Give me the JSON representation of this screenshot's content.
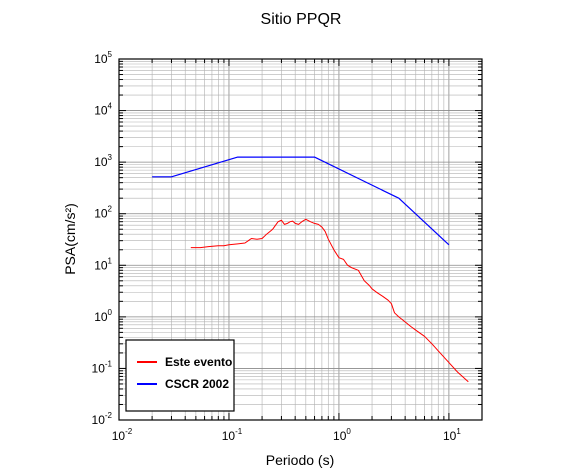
{
  "chart_data": {
    "type": "line",
    "title": "Sitio PPQR",
    "xlabel": "Periodo (s)",
    "ylabel": "PSA(cm/s²)",
    "x_scale": "log",
    "y_scale": "log",
    "xlim": [
      0.01,
      20
    ],
    "ylim": [
      0.01,
      100000
    ],
    "x_ticks": [
      {
        "base": "10",
        "exp": "-2"
      },
      {
        "base": "10",
        "exp": "-1"
      },
      {
        "base": "10",
        "exp": "0"
      },
      {
        "base": "10",
        "exp": "1"
      }
    ],
    "y_ticks": [
      {
        "base": "10",
        "exp": "-2"
      },
      {
        "base": "10",
        "exp": "-1"
      },
      {
        "base": "10",
        "exp": "0"
      },
      {
        "base": "10",
        "exp": "1"
      },
      {
        "base": "10",
        "exp": "2"
      },
      {
        "base": "10",
        "exp": "3"
      },
      {
        "base": "10",
        "exp": "4"
      },
      {
        "base": "10",
        "exp": "5"
      }
    ],
    "grid": true,
    "legend_position": "bottom-left",
    "series": [
      {
        "name": "Este evento",
        "color": "#ff0000",
        "x": [
          0.045,
          0.055,
          0.065,
          0.08,
          0.09,
          0.1,
          0.12,
          0.14,
          0.15,
          0.16,
          0.18,
          0.2,
          0.22,
          0.25,
          0.28,
          0.3,
          0.32,
          0.34,
          0.36,
          0.38,
          0.4,
          0.43,
          0.46,
          0.5,
          0.55,
          0.6,
          0.65,
          0.7,
          0.75,
          0.8,
          0.9,
          1.0,
          1.1,
          1.2,
          1.3,
          1.5,
          1.7,
          1.9,
          2.0,
          2.2,
          2.5,
          2.8,
          3.0,
          3.2,
          3.5,
          4.0,
          4.5,
          5.0,
          6.0,
          7.0,
          8.0,
          10.0,
          12.0,
          15.0
        ],
        "y": [
          22,
          22,
          23,
          24,
          24,
          25,
          26,
          27,
          30,
          33,
          32,
          33,
          40,
          50,
          70,
          75,
          62,
          65,
          70,
          72,
          65,
          62,
          70,
          78,
          70,
          65,
          62,
          55,
          45,
          32,
          20,
          14,
          13,
          10,
          9,
          8,
          5,
          4,
          3.5,
          3,
          2.5,
          2.1,
          1.8,
          1.2,
          1.0,
          0.8,
          0.65,
          0.55,
          0.42,
          0.3,
          0.22,
          0.13,
          0.085,
          0.055
        ]
      },
      {
        "name": "CSCR 2002",
        "color": "#0000ff",
        "x": [
          0.02,
          0.03,
          0.12,
          0.6,
          3.5,
          10
        ],
        "y": [
          520,
          520,
          1250,
          1250,
          200,
          25
        ]
      }
    ]
  }
}
